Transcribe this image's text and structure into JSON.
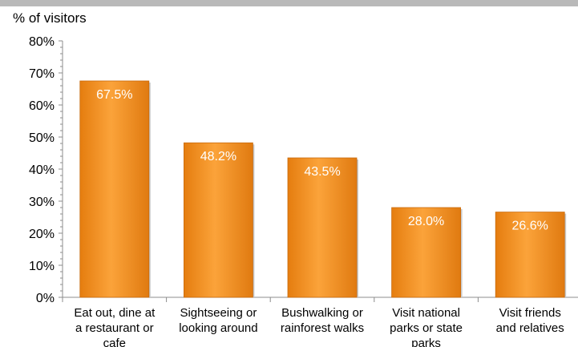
{
  "chart_data": {
    "type": "bar",
    "ylabel": "% of visitors",
    "ylim": [
      0,
      80
    ],
    "y_ticks": [
      "0%",
      "10%",
      "20%",
      "30%",
      "40%",
      "50%",
      "60%",
      "70%",
      "80%"
    ],
    "categories": [
      [
        "Eat out, dine at",
        "a restaurant or",
        "cafe"
      ],
      [
        "Sightseeing or",
        "looking around"
      ],
      [
        "Bushwalking or",
        "rainforest walks"
      ],
      [
        "Visit national",
        "parks or state",
        "parks"
      ],
      [
        "Visit friends",
        "and relatives"
      ]
    ],
    "values": [
      67.5,
      48.2,
      43.5,
      28.0,
      26.6
    ],
    "value_labels": [
      "67.5%",
      "48.2%",
      "43.5%",
      "28.0%",
      "26.6%"
    ],
    "bar_color": "#f7941d",
    "grid": false
  }
}
